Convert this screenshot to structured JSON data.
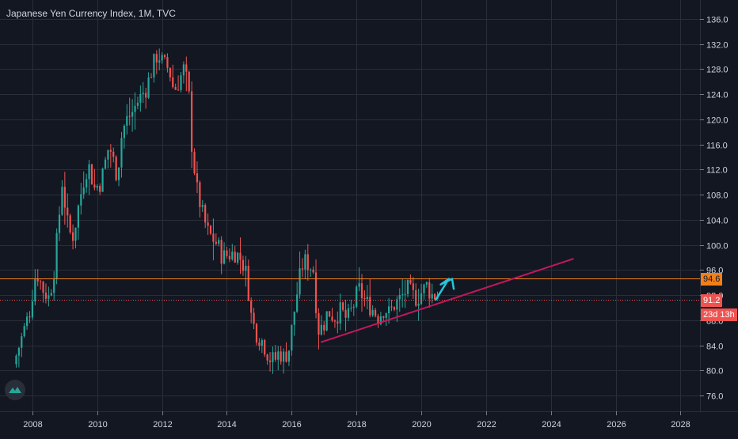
{
  "title": "Japanese Yen Currency Index, 1M, TVC",
  "colors": {
    "background": "#131722",
    "grid": "#2a2e39",
    "up": "#26a69a",
    "down": "#ef5350",
    "axis_text": "#d1d4dc",
    "orange_line": "#f57f17",
    "red_dotted": "#ef5350",
    "trendline": "#c2185b",
    "arrow": "#26c6da"
  },
  "chart_data": {
    "type": "candlestick",
    "xlim": [
      2007.0,
      2028.6
    ],
    "ylim": [
      73.5,
      139.0
    ],
    "x_ticks": [
      "2008",
      "2010",
      "2012",
      "2014",
      "2016",
      "2018",
      "2020",
      "2022",
      "2024",
      "2026",
      "2028"
    ],
    "y_ticks": [
      "76.0",
      "80.0",
      "84.0",
      "88.0",
      "92.0",
      "96.0",
      "100.0",
      "104.0",
      "108.0",
      "112.0",
      "116.0",
      "120.0",
      "124.0",
      "128.0",
      "132.0",
      "136.0"
    ],
    "price_path": [
      [
        2007.5,
        81.0
      ],
      [
        2007.8,
        86.0
      ],
      [
        2008.0,
        89.5
      ],
      [
        2008.2,
        96.0
      ],
      [
        2008.4,
        93.0
      ],
      [
        2008.6,
        91.5
      ],
      [
        2008.75,
        96.0
      ],
      [
        2008.9,
        104.0
      ],
      [
        2009.0,
        110.0
      ],
      [
        2009.2,
        102.0
      ],
      [
        2009.35,
        101.5
      ],
      [
        2009.5,
        106.0
      ],
      [
        2009.65,
        110.0
      ],
      [
        2009.8,
        113.0
      ],
      [
        2010.0,
        109.0
      ],
      [
        2010.2,
        110.0
      ],
      [
        2010.45,
        116.0
      ],
      [
        2010.7,
        111.0
      ],
      [
        2010.85,
        118.0
      ],
      [
        2011.0,
        120.0
      ],
      [
        2011.15,
        121.0
      ],
      [
        2011.35,
        123.0
      ],
      [
        2011.6,
        125.0
      ],
      [
        2011.8,
        128.5
      ],
      [
        2011.95,
        130.5
      ],
      [
        2012.1,
        129.0
      ],
      [
        2012.3,
        128.0
      ],
      [
        2012.45,
        124.5
      ],
      [
        2012.6,
        126.0
      ],
      [
        2012.75,
        128.0
      ],
      [
        2012.9,
        125.0
      ],
      [
        2013.0,
        116.0
      ],
      [
        2013.15,
        109.0
      ],
      [
        2013.35,
        104.5
      ],
      [
        2013.5,
        102.0
      ],
      [
        2013.65,
        101.0
      ],
      [
        2013.8,
        100.0
      ],
      [
        2013.95,
        98.0
      ],
      [
        2014.15,
        98.5
      ],
      [
        2014.35,
        98.8
      ],
      [
        2014.55,
        97.5
      ],
      [
        2014.7,
        95.0
      ],
      [
        2014.85,
        88.0
      ],
      [
        2015.0,
        86.0
      ],
      [
        2015.2,
        84.5
      ],
      [
        2015.4,
        82.0
      ],
      [
        2015.55,
        81.5
      ],
      [
        2015.7,
        83.0
      ],
      [
        2015.85,
        82.0
      ],
      [
        2016.0,
        83.5
      ],
      [
        2016.15,
        89.0
      ],
      [
        2016.3,
        94.0
      ],
      [
        2016.45,
        97.5
      ],
      [
        2016.6,
        97.0
      ],
      [
        2016.75,
        96.0
      ],
      [
        2016.9,
        86.5
      ],
      [
        2017.05,
        87.0
      ],
      [
        2017.2,
        89.5
      ],
      [
        2017.4,
        88.5
      ],
      [
        2017.6,
        89.5
      ],
      [
        2017.8,
        88.0
      ],
      [
        2018.0,
        90.5
      ],
      [
        2018.15,
        93.0
      ],
      [
        2018.35,
        91.0
      ],
      [
        2018.55,
        90.0
      ],
      [
        2018.75,
        88.5
      ],
      [
        2018.95,
        90.0
      ],
      [
        2019.1,
        89.0
      ],
      [
        2019.25,
        90.5
      ],
      [
        2019.45,
        91.5
      ],
      [
        2019.65,
        93.0
      ],
      [
        2019.8,
        92.0
      ],
      [
        2019.95,
        91.5
      ],
      [
        2020.1,
        92.5
      ],
      [
        2020.25,
        93.5
      ],
      [
        2020.4,
        92.0
      ],
      [
        2020.55,
        92.0
      ]
    ],
    "annotations": {
      "orange_line": 94.6,
      "red_dotted_line": 91.2,
      "current_price": 91.2,
      "trendline": [
        [
          2016.9,
          84.5
        ],
        [
          2024.7,
          97.8
        ]
      ],
      "arrow_path": [
        [
          2020.45,
          91.3
        ],
        [
          2020.85,
          94.6
        ],
        [
          2020.6,
          93.7
        ],
        [
          2020.95,
          94.6
        ],
        [
          2021.0,
          93.0
        ]
      ]
    },
    "labels": {
      "orange_line": "94.6",
      "current_price": "91.2",
      "countdown": "23d 13h"
    }
  }
}
